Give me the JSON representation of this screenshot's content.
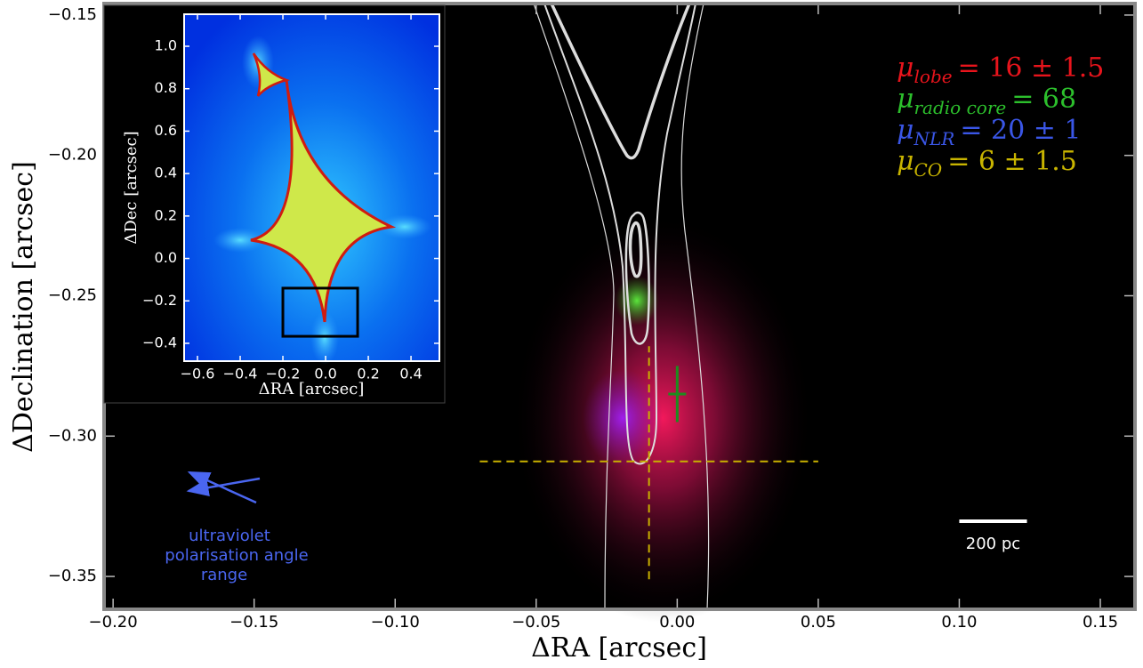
{
  "chart_data": [
    {
      "type": "image",
      "xlabel": "ΔRA  [arcsec]",
      "ylabel": "ΔDeclination  [arcsec]",
      "xlim": [
        -0.2032,
        0.1623
      ],
      "ylim": [
        -0.3617,
        -0.1459
      ],
      "xticks": [
        {
          "value": -0.2,
          "label": "−0.20"
        },
        {
          "value": -0.15,
          "label": "−0.15"
        },
        {
          "value": -0.1,
          "label": "−0.10"
        },
        {
          "value": -0.05,
          "label": "−0.05"
        },
        {
          "value": 0,
          "label": "0.00"
        },
        0.05,
        {
          "value": 0.1,
          "label": "0.10"
        },
        0.15
      ],
      "yticks": [
        {
          "value": -0.15,
          "label": "−0.15"
        },
        {
          "value": -0.2,
          "label": "−0.20"
        },
        {
          "value": -0.25,
          "label": "−0.25"
        },
        {
          "value": -0.3,
          "label": "−0.30"
        },
        {
          "value": -0.35,
          "label": "−0.35"
        }
      ],
      "points": [
        {
          "x": 0,
          "y": -0.285,
          "yerr": 0.01,
          "color": "#1e8c1e"
        }
      ],
      "crosshair": {
        "x": -0.01,
        "y": -0.309,
        "xrange": [
          -0.07,
          0.05
        ],
        "yrange": [
          -0.351,
          -0.268
        ],
        "color": "#c8b000"
      },
      "scale_bar": {
        "x": 0.1,
        "y": -0.3805,
        "length": 0.024,
        "label": "200 pc"
      },
      "annotations": [
        {
          "symbol": "μ",
          "subscript": "lobe",
          "text": "= 16 ± 1.5",
          "color": "#e8141c"
        },
        {
          "symbol": "μ",
          "subscript": "radio core",
          "text": "= 68",
          "color": "#2cbf2c"
        },
        {
          "symbol": "μ",
          "subscript": "NLR",
          "text": "= 20 ± 1",
          "color": "#3a56e6"
        },
        {
          "symbol": "μ",
          "subscript": "CO",
          "text": "= 6 ± 1.5",
          "color": "#c8b400"
        }
      ],
      "note": [
        "ultraviolet",
        "polarisation angle",
        "range"
      ],
      "note_color": "#4a66f0"
    },
    {
      "type": "image",
      "xlabel": "ΔRA  [arcsec]",
      "ylabel": "ΔDec  [arcsec]",
      "xlim": [
        -0.6625,
        0.533
      ],
      "ylim": [
        -0.484,
        1.151
      ],
      "xticks": [
        {
          "value": -0.6,
          "label": "−0.6"
        },
        {
          "value": -0.4,
          "label": "−0.4"
        },
        {
          "value": -0.2,
          "label": "−0.2"
        },
        {
          "value": 0,
          "label": "0.0"
        },
        0.2,
        0.4
      ],
      "yticks": [
        {
          "value": 1,
          "label": "1.0"
        },
        0.8,
        0.6,
        0.4,
        0.2,
        {
          "value": 0,
          "label": "0.0"
        },
        {
          "value": -0.2,
          "label": "−0.2"
        },
        {
          "value": -0.4,
          "label": "−0.4"
        }
      ],
      "box": {
        "x": [
          -0.2,
          0.15
        ],
        "y": [
          -0.367,
          -0.14
        ]
      }
    }
  ]
}
